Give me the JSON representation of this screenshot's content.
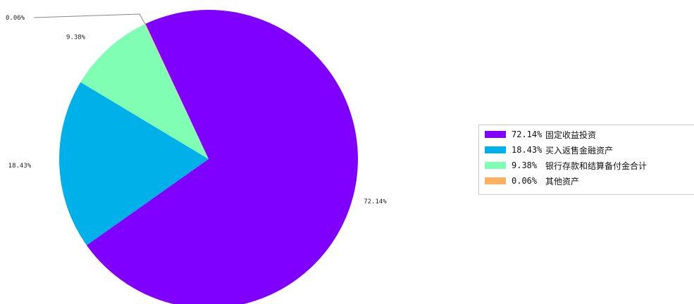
{
  "chart_data": {
    "type": "pie",
    "title": "",
    "slices": [
      {
        "name": "固定收益投资",
        "value": 72.14,
        "label": "72.14%",
        "color": "#7f00ff"
      },
      {
        "name": "买入返售金融资产",
        "value": 18.43,
        "label": "18.43%",
        "color": "#00b0e8"
      },
      {
        "name": "银行存款和结算备付金合计",
        "value": 9.38,
        "label": "9.38%",
        "color": "#80ffb4"
      },
      {
        "name": "其他资产",
        "value": 0.06,
        "label": "0.06%",
        "color": "#ffb060"
      }
    ],
    "legend_position": "right"
  }
}
